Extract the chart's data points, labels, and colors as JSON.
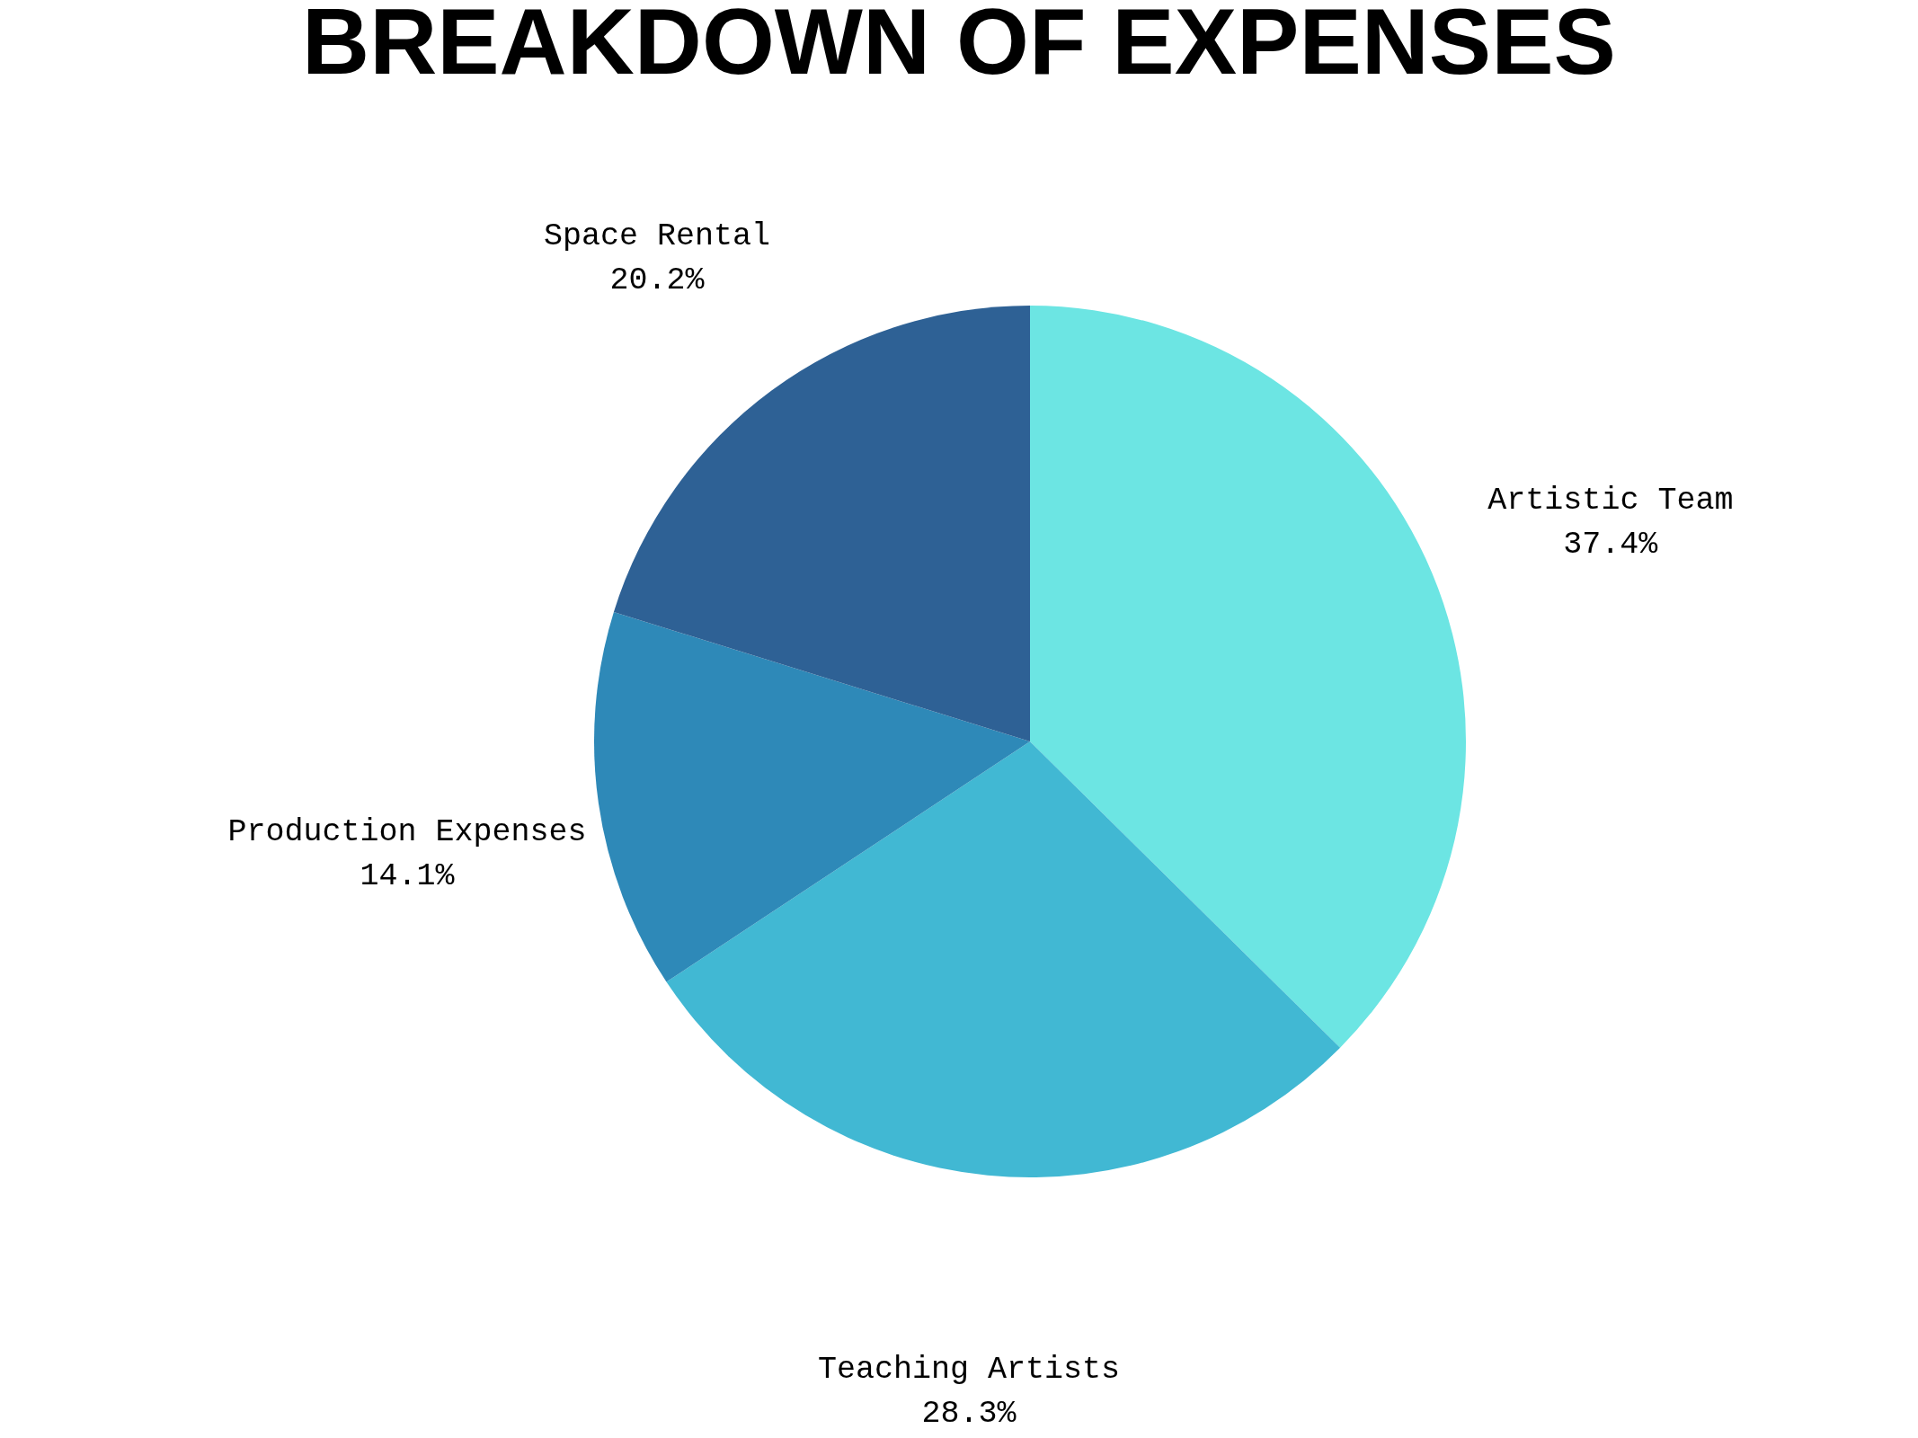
{
  "chart_data": {
    "type": "pie",
    "title": "BREAKDOWN OF EXPENSES",
    "categories": [
      "Artistic Team",
      "Teaching Artists",
      "Production Expenses",
      "Space Rental"
    ],
    "values": [
      37.4,
      28.3,
      14.1,
      20.2
    ],
    "value_labels": [
      "37.4%",
      "28.3%",
      "14.1%",
      "20.2%"
    ],
    "colors": [
      "#6ce5e3",
      "#41b8d3",
      "#2e89b8",
      "#2e6195"
    ]
  }
}
